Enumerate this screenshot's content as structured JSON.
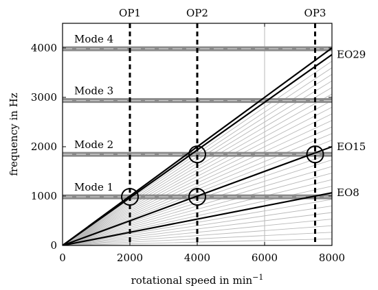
{
  "chart_data": {
    "type": "line",
    "xlabel": "rotational speed in min",
    "xlabel_superscript": "−1",
    "ylabel": "frequency in Hz",
    "xlim": [
      0,
      8000
    ],
    "ylim": [
      0,
      4500
    ],
    "x_ticks": [
      0,
      2000,
      4000,
      6000,
      8000
    ],
    "y_ticks": [
      0,
      1000,
      2000,
      3000,
      4000
    ],
    "x_tick_labels": [
      "0",
      "2000",
      "4000",
      "6000",
      "8000"
    ],
    "y_tick_labels": [
      "0",
      "1000",
      "2000",
      "3000",
      "4000"
    ],
    "grid": false,
    "colors": {
      "faint": "#b8b8b8",
      "mode": "#8a8a8a",
      "black": "#000000"
    },
    "engine_orders": {
      "min": 1,
      "max": 30
    },
    "highlighted_orders": [
      {
        "label": "EO29",
        "order": 29
      },
      {
        "label": "EO15",
        "order": 15
      },
      {
        "label": "EO8",
        "order": 8
      },
      {
        "label": "",
        "order": 30
      }
    ],
    "modes": [
      {
        "label": "Mode 1",
        "frequency": 985
      },
      {
        "label": "Mode 2",
        "frequency": 1845
      },
      {
        "label": "Mode 3",
        "frequency": 2935
      },
      {
        "label": "Mode 4",
        "frequency": 3985
      }
    ],
    "operating_points": [
      {
        "label": "OP1",
        "speed": 2000
      },
      {
        "label": "OP2",
        "speed": 4000
      },
      {
        "label": "OP3",
        "speed": 7500
      }
    ],
    "resonance_markers": [
      {
        "speed": 2000,
        "frequency": 985
      },
      {
        "speed": 4000,
        "frequency": 985
      },
      {
        "speed": 4000,
        "frequency": 1845
      },
      {
        "speed": 7500,
        "frequency": 1845
      }
    ],
    "faint_vertical_speed": 6000
  }
}
